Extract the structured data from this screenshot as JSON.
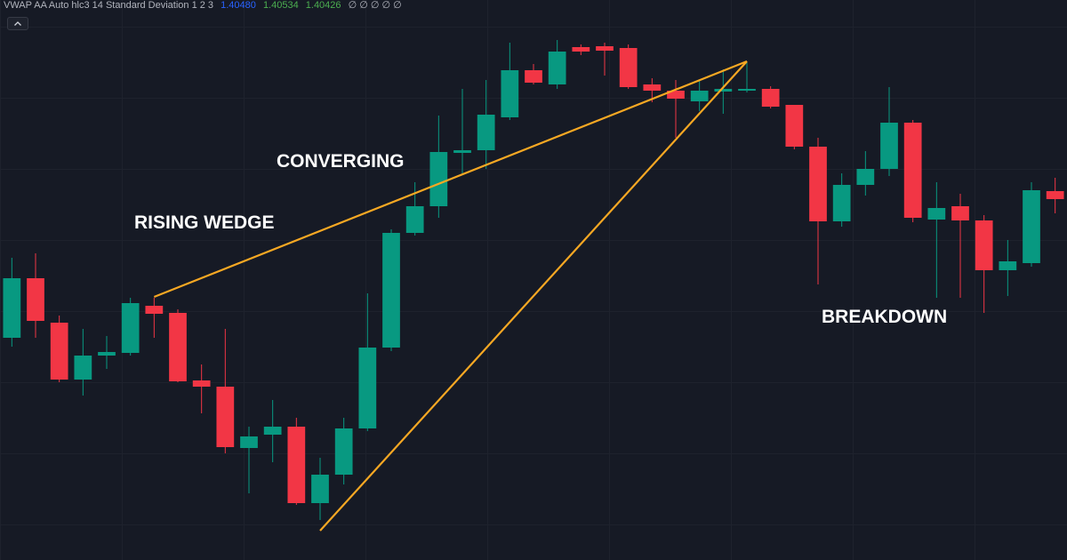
{
  "chart_data": {
    "type": "candlestick",
    "indicator": {
      "name": "VWAP AA Auto hlc3 14 Standard Deviation 1 2 3",
      "readings": [
        {
          "text": "1.40480",
          "color": "#2962ff"
        },
        {
          "text": "1.40534",
          "color": "#4caf50"
        },
        {
          "text": "1.40426",
          "color": "#4caf50"
        }
      ],
      "empty": "∅ ∅ ∅ ∅ ∅"
    },
    "annotations": [
      "RISING WEDGE",
      "CONVERGING",
      "BREAKDOWN"
    ],
    "up_color": "#089981",
    "down_color": "#f23645",
    "ylim": [
      0,
      630
    ],
    "open": [
      250,
      317,
      267,
      203,
      230,
      233,
      286,
      278,
      202,
      195,
      126,
      141,
      150,
      64,
      96,
      148,
      239,
      368,
      398,
      458,
      461,
      498,
      551,
      535,
      577,
      578,
      576,
      535,
      528,
      516,
      527,
      528,
      530,
      512,
      465,
      381,
      422,
      440,
      492,
      383,
      398,
      382,
      326,
      334,
      415
    ],
    "high": [
      340,
      345,
      275,
      260,
      252,
      295,
      295,
      282,
      220,
      260,
      150,
      180,
      160,
      115,
      160,
      300,
      372,
      425,
      500,
      530,
      540,
      582,
      558,
      585,
      580,
      582,
      580,
      542,
      540,
      540,
      552,
      560,
      533,
      512,
      475,
      435,
      460,
      532,
      495,
      425,
      412,
      388,
      360,
      425,
      430
    ],
    "low": [
      240,
      250,
      200,
      185,
      215,
      230,
      250,
      200,
      165,
      120,
      75,
      110,
      62,
      45,
      85,
      145,
      235,
      365,
      385,
      435,
      440,
      495,
      535,
      530,
      568,
      545,
      530,
      515,
      475,
      505,
      502,
      526,
      508,
      462,
      310,
      375,
      410,
      432,
      380,
      295,
      295,
      278,
      297,
      330,
      390
    ],
    "close": [
      317,
      269,
      203,
      230,
      234,
      289,
      277,
      201,
      195,
      127,
      139,
      150,
      64,
      96,
      148,
      239,
      368,
      398,
      459,
      461,
      501,
      551,
      537,
      572,
      572,
      573,
      532,
      528,
      519,
      528,
      530,
      530,
      510,
      465,
      381,
      422,
      440,
      492,
      385,
      396,
      382,
      326,
      336,
      416,
      406
    ],
    "trendlines": [
      {
        "color": "#f7a823",
        "x": [
          6,
          31
        ],
        "values": [
          296,
          561
        ]
      },
      {
        "color": "#f7a823",
        "x": [
          13,
          31
        ],
        "values": [
          33,
          561
        ]
      }
    ]
  }
}
